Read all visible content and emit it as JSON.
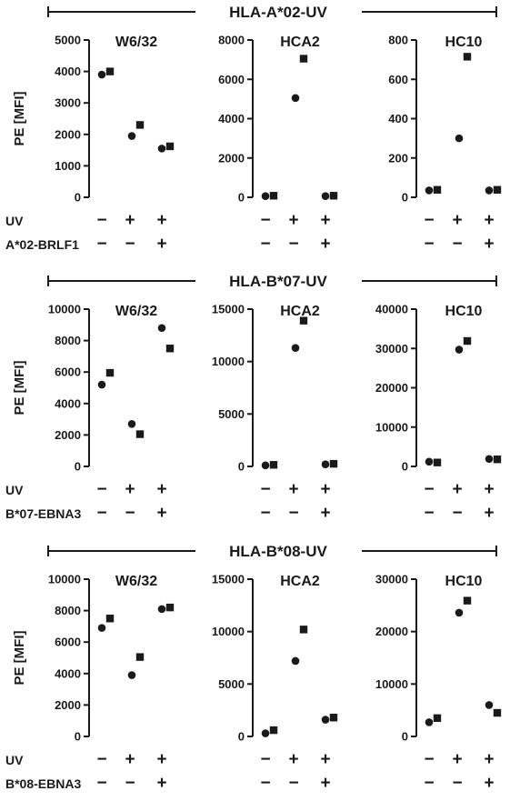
{
  "chart_data": {
    "type": "scatter",
    "markers": {
      "first": "circle",
      "second": "square"
    },
    "conditions": [
      "−UV / −construct",
      "+UV / −construct",
      "+UV / +construct"
    ],
    "row_labels": [
      "UV"
    ],
    "ylabel": "PE [MFI]",
    "color": "#1a1a1a",
    "groups": [
      {
        "title": "HLA-A*02-UV",
        "construct_label": "A*02-BRLF1",
        "uv_signs": [
          "−",
          "+",
          "+"
        ],
        "construct_signs": [
          "−",
          "−",
          "+"
        ],
        "panels": [
          {
            "title": "W6/32",
            "ylim": [
              0,
              5000
            ],
            "yticks": [
              0,
              1000,
              2000,
              3000,
              4000,
              5000
            ],
            "yticklabels": [
              "0",
              "1000",
              "2000",
              "3000",
              "4000",
              "5000"
            ],
            "circles": [
              3900,
              1950,
              1550
            ],
            "squares": [
              4000,
              2300,
              1620
            ]
          },
          {
            "title": "HCA2",
            "ylim": [
              0,
              8000
            ],
            "yticks": [
              0,
              2000,
              4000,
              6000,
              8000
            ],
            "yticklabels": [
              "0",
              "2000",
              "4000",
              "6000",
              "8000"
            ],
            "circles": [
              60,
              5050,
              60
            ],
            "squares": [
              80,
              7050,
              80
            ]
          },
          {
            "title": "HC10",
            "ylim": [
              0,
              800
            ],
            "yticks": [
              0,
              200,
              400,
              600,
              800
            ],
            "yticklabels": [
              "0",
              "200",
              "400",
              "600",
              "800"
            ],
            "circles": [
              35,
              300,
              35
            ],
            "squares": [
              38,
              715,
              38
            ]
          }
        ]
      },
      {
        "title": "HLA-B*07-UV",
        "construct_label": "B*07-EBNA3",
        "uv_signs": [
          "−",
          "+",
          "+"
        ],
        "construct_signs": [
          "−",
          "−",
          "+"
        ],
        "panels": [
          {
            "title": "W6/32",
            "ylim": [
              0,
              10000
            ],
            "yticks": [
              0,
              2000,
              4000,
              6000,
              8000,
              10000
            ],
            "yticklabels": [
              "0",
              "2000",
              "4000",
              "6000",
              "8000",
              "10000"
            ],
            "circles": [
              5200,
              2700,
              8800
            ],
            "squares": [
              5950,
              2050,
              7500
            ]
          },
          {
            "title": "HCA2",
            "ylim": [
              0,
              15000
            ],
            "yticks": [
              0,
              5000,
              10000,
              15000
            ],
            "yticklabels": [
              "0",
              "5000",
              "10000",
              "15000"
            ],
            "circles": [
              100,
              11300,
              200
            ],
            "squares": [
              150,
              13900,
              250
            ]
          },
          {
            "title": "HC10",
            "ylim": [
              0,
              40000
            ],
            "yticks": [
              0,
              10000,
              20000,
              30000,
              40000
            ],
            "yticklabels": [
              "0",
              "10000",
              "20000",
              "30000",
              "40000"
            ],
            "circles": [
              1200,
              29700,
              1900
            ],
            "squares": [
              1000,
              31900,
              1800
            ]
          }
        ]
      },
      {
        "title": "HLA-B*08-UV",
        "construct_label": "B*08-EBNA3",
        "uv_signs": [
          "−",
          "+",
          "+"
        ],
        "construct_signs": [
          "−",
          "−",
          "+"
        ],
        "panels": [
          {
            "title": "W6/32",
            "ylim": [
              0,
              10000
            ],
            "yticks": [
              0,
              2000,
              4000,
              6000,
              8000,
              10000
            ],
            "yticklabels": [
              "0",
              "2000",
              "4000",
              "6000",
              "8000",
              "10000"
            ],
            "circles": [
              6900,
              3900,
              8100
            ],
            "squares": [
              7500,
              5050,
              8200
            ]
          },
          {
            "title": "HCA2",
            "ylim": [
              0,
              15000
            ],
            "yticks": [
              0,
              5000,
              10000,
              15000
            ],
            "yticklabels": [
              "0",
              "5000",
              "10000",
              "15000"
            ],
            "circles": [
              300,
              7200,
              1600
            ],
            "squares": [
              600,
              10200,
              1800
            ]
          },
          {
            "title": "HC10",
            "ylim": [
              0,
              30000
            ],
            "yticks": [
              0,
              10000,
              20000,
              30000
            ],
            "yticklabels": [
              "0",
              "10000",
              "20000",
              "30000"
            ],
            "circles": [
              2700,
              23600,
              6000
            ],
            "squares": [
              3500,
              25900,
              4500
            ]
          }
        ]
      }
    ]
  }
}
